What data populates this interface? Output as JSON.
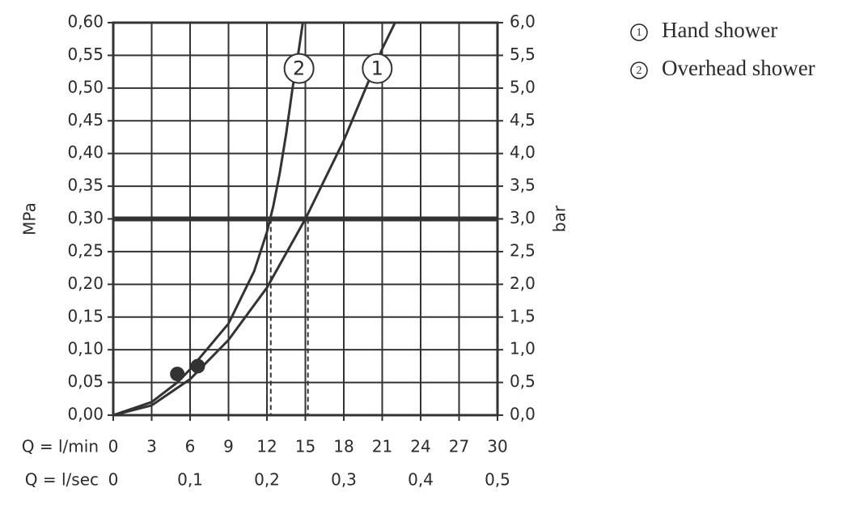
{
  "chart_data": {
    "type": "line",
    "ylabel": "MPa",
    "y2label": "bar",
    "xlabel": "Q = l/min",
    "x2label": "Q = l/sec",
    "xlim": [
      0,
      30
    ],
    "xticks": [
      0,
      3,
      6,
      9,
      12,
      15,
      18,
      21,
      24,
      27,
      30
    ],
    "x2lim": [
      0,
      0.5
    ],
    "x2ticks": [
      0,
      {
        "value": 0.1,
        "label": "0,1"
      },
      {
        "value": 0.2,
        "label": "0,2"
      },
      {
        "value": 0.3,
        "label": "0,3"
      },
      {
        "value": 0.4,
        "label": "0,4"
      },
      {
        "value": 0.5,
        "label": "0,5"
      }
    ],
    "ylim": [
      0,
      0.6
    ],
    "yticks": [
      {
        "value": 0,
        "label": "0,00"
      },
      {
        "value": 0.05,
        "label": "0,05"
      },
      {
        "value": 0.1,
        "label": "0,10"
      },
      {
        "value": 0.15,
        "label": "0,15"
      },
      {
        "value": 0.2,
        "label": "0,20"
      },
      {
        "value": 0.25,
        "label": "0,25"
      },
      {
        "value": 0.3,
        "label": "0,30"
      },
      {
        "value": 0.35,
        "label": "0,35"
      },
      {
        "value": 0.4,
        "label": "0,40"
      },
      {
        "value": 0.45,
        "label": "0,45"
      },
      {
        "value": 0.5,
        "label": "0,50"
      },
      {
        "value": 0.55,
        "label": "0,55"
      },
      {
        "value": 0.6,
        "label": "0,60"
      }
    ],
    "y2lim": [
      0,
      6
    ],
    "y2ticks": [
      {
        "value": 0,
        "label": "0,0"
      },
      {
        "value": 0.5,
        "label": "0,5"
      },
      {
        "value": 1,
        "label": "1,0"
      },
      {
        "value": 1.5,
        "label": "1,5"
      },
      {
        "value": 2,
        "label": "2,0"
      },
      {
        "value": 2.5,
        "label": "2,5"
      },
      {
        "value": 3,
        "label": "3,0"
      },
      {
        "value": 3.5,
        "label": "3,5"
      },
      {
        "value": 4,
        "label": "4,0"
      },
      {
        "value": 4.5,
        "label": "4,5"
      },
      {
        "value": 5,
        "label": "5,0"
      },
      {
        "value": 5.5,
        "label": "5,5"
      },
      {
        "value": 6,
        "label": "6,0"
      }
    ],
    "grid": true,
    "color": "#333333",
    "reference_y": 0.3,
    "dashed_x": [
      12.3,
      15.2
    ],
    "points": {
      "x": [
        5,
        6.6
      ],
      "y": [
        0.063,
        0.075
      ]
    },
    "label_y": 0.53,
    "series": [
      {
        "name": "Hand shower",
        "label": "1",
        "color": "#333333",
        "x": [
          0,
          3,
          6,
          9,
          12,
          15,
          18,
          21,
          22
        ],
        "values": [
          0,
          0.015,
          0.055,
          0.115,
          0.195,
          0.3,
          0.42,
          0.56,
          0.6
        ]
      },
      {
        "name": "Overhead shower",
        "label": "2",
        "color": "#333333",
        "x": [
          0,
          3,
          5,
          6,
          9,
          11,
          12,
          12.5,
          13,
          13.5,
          14,
          14.5,
          14.8
        ],
        "values": [
          0,
          0.02,
          0.05,
          0.07,
          0.14,
          0.22,
          0.28,
          0.32,
          0.37,
          0.43,
          0.5,
          0.56,
          0.6
        ]
      }
    ]
  }
}
